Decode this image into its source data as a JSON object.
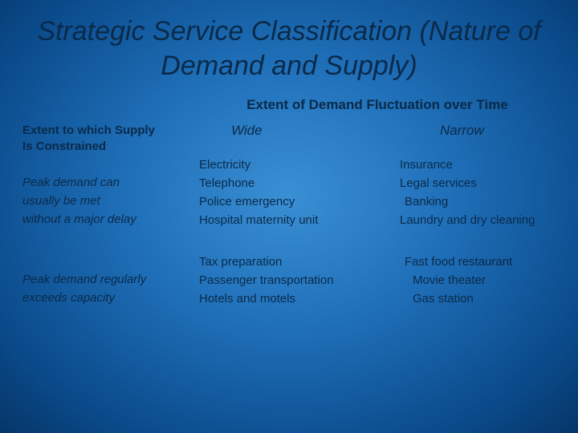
{
  "colors": {
    "bg_center": "#3a8fd4",
    "bg_mid": "#1f6fb8",
    "bg_outer": "#063668",
    "text": "#0a2a4a"
  },
  "title": "Strategic Service Classification (Nature of Demand and Supply)",
  "top_header": "Extent of Demand Fluctuation over Time",
  "left_header_line1": "Extent to which Supply",
  "left_header_line2": "Is Constrained",
  "columns": {
    "wide": "Wide",
    "narrow": "Narrow"
  },
  "row1": {
    "label_line1": "Peak demand can",
    "label_line2": "usually be met",
    "label_line3": "without a major delay",
    "wide": [
      "Electricity",
      "Telephone",
      "Police emergency",
      "Hospital  maternity  unit"
    ],
    "narrow": [
      "Insurance",
      "Legal services",
      "Banking",
      "Laundry and dry cleaning"
    ]
  },
  "row2": {
    "label_line1": "Peak demand  regularly",
    "label_line2": "exceeds capacity",
    "wide": [
      "Tax  preparation",
      "Passenger transportation",
      "Hotels and motels"
    ],
    "narrow": [
      "Fast food restaurant",
      "Movie theater",
      "Gas station"
    ]
  },
  "fonts": {
    "title_size_pt": 26,
    "header_size_pt": 13,
    "body_size_pt": 11,
    "title_style": "italic"
  }
}
